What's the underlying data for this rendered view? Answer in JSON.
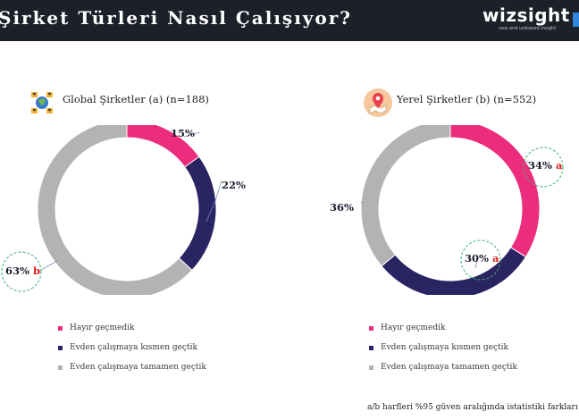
{
  "header": {
    "title": "Şirket Türleri Nasıl Çalışıyor?",
    "logo_text": "wizsight",
    "logo_tagline": "new and unbiased insight"
  },
  "colors": {
    "pink": "#ec2c7d",
    "navy": "#2b2462",
    "gray": "#b3b3b3"
  },
  "chart_data": [
    {
      "type": "pie",
      "title": "Global Şirketler (a) (n=188)",
      "categories": [
        "Hayır geçmedik",
        "Evden çalışmaya kısmen geçtik",
        "Evden çalışmaya tamamen geçtik"
      ],
      "values": [
        15,
        22,
        63
      ],
      "labels": [
        "15%",
        "22%",
        "63%"
      ],
      "significance": [
        "",
        "",
        "b"
      ],
      "icon": "network-people-icon"
    },
    {
      "type": "pie",
      "title": "Yerel Şirketler (b) (n=552)",
      "categories": [
        "Hayır geçmedik",
        "Evden çalışmaya kısmen geçtik",
        "Evden çalışmaya tamamen geçtik"
      ],
      "values": [
        34,
        30,
        36
      ],
      "labels": [
        "34%",
        "30%",
        "36%"
      ],
      "significance": [
        "a",
        "a",
        ""
      ],
      "icon": "map-pin-icon"
    }
  ],
  "legend": [
    "Hayır geçmedik",
    "Evden çalışmaya kısmen geçtik",
    "Evden çalışmaya tamamen geçtik"
  ],
  "footnote": "a/b harfleri %95 güven aralığında istatistiki farkları"
}
